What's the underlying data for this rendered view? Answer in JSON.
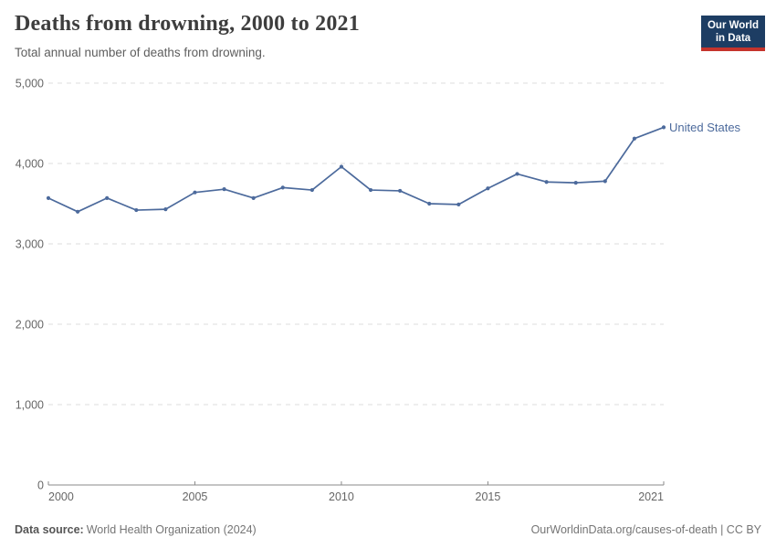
{
  "header": {
    "title": "Deaths from drowning, 2000 to 2021",
    "subtitle": "Total annual number of deaths from drowning.",
    "logo": {
      "line1": "Our World",
      "line2": "in Data"
    }
  },
  "chart_data": {
    "type": "line",
    "title": "Deaths from drowning, 2000 to 2021",
    "subtitle": "Total annual number of deaths from drowning.",
    "xlabel": "",
    "ylabel": "",
    "xlim": [
      2000,
      2021
    ],
    "ylim": [
      0,
      5000
    ],
    "xticks": [
      2000,
      2005,
      2010,
      2015,
      2021
    ],
    "yticks": [
      0,
      1000,
      2000,
      3000,
      4000,
      5000
    ],
    "ytick_labels": [
      "0",
      "1,000",
      "2,000",
      "3,000",
      "4,000",
      "5,000"
    ],
    "grid": "horizontal-dashed",
    "legend_position": "end-of-line-label",
    "series": [
      {
        "name": "United States",
        "color": "#4c6a9c",
        "x": [
          2000,
          2001,
          2002,
          2003,
          2004,
          2005,
          2006,
          2007,
          2008,
          2009,
          2010,
          2011,
          2012,
          2013,
          2014,
          2015,
          2016,
          2017,
          2018,
          2019,
          2020,
          2021
        ],
        "values": [
          3570,
          3400,
          3570,
          3420,
          3430,
          3640,
          3680,
          3570,
          3700,
          3670,
          3960,
          3670,
          3660,
          3500,
          3490,
          3690,
          3870,
          3770,
          3760,
          3780,
          4310,
          4450
        ]
      }
    ]
  },
  "footer": {
    "source_label": "Data source:",
    "source_value": "World Health Organization (2024)",
    "attribution": "OurWorldinData.org/causes-of-death | CC BY"
  },
  "colors": {
    "line": "#4c6a9c",
    "grid": "#dedede",
    "axis": "#8a8a8a",
    "tick_label": "#666666",
    "title": "#3d3d3d",
    "subtitle": "#5e5e5e",
    "footer": "#757575",
    "logo_navy": "#1d3d63",
    "logo_red": "#c5342c"
  }
}
